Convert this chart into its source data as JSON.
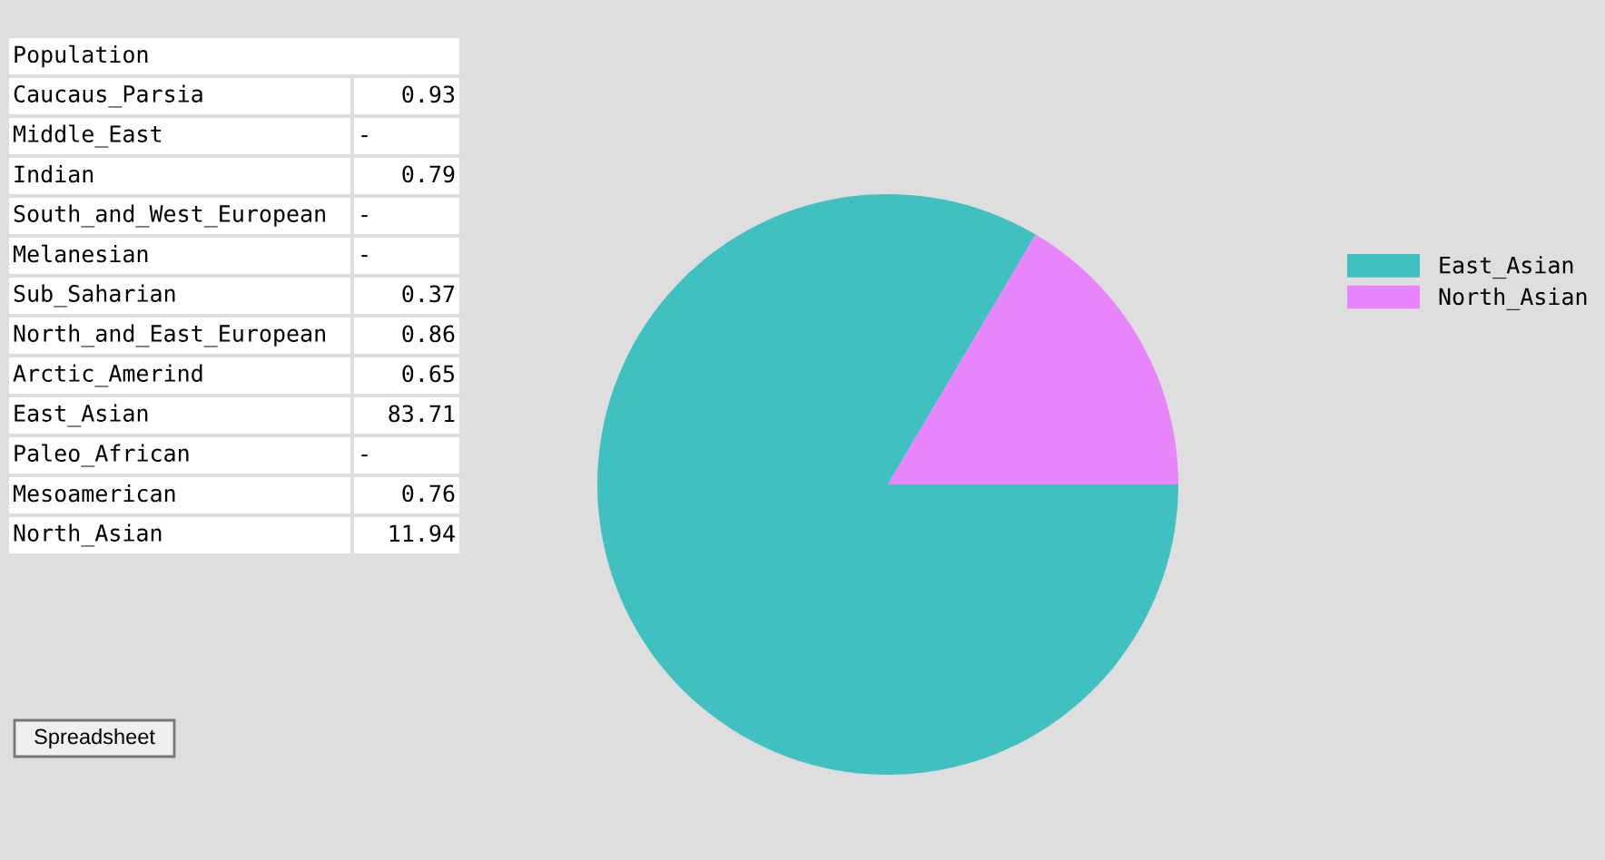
{
  "chart_data": [
    {
      "type": "other",
      "title": "Population",
      "categories": [
        "Caucaus_Parsia",
        "Middle_East",
        "Indian",
        "South_and_West_European",
        "Melanesian",
        "Sub_Saharian",
        "North_and_East_European",
        "Arctic_Amerind",
        "East_Asian",
        "Paleo_African",
        "Mesoamerican",
        "North_Asian"
      ],
      "value_labels": [
        "0.93",
        "-",
        "0.79",
        "-",
        "-",
        "0.37",
        "0.86",
        "0.65",
        "83.71",
        "-",
        "0.76",
        "11.94"
      ],
      "annotations": [
        "Spreadsheet"
      ]
    },
    {
      "type": "pie",
      "categories": [
        "East_Asian",
        "North_Asian"
      ],
      "values": [
        83.5,
        16.5
      ],
      "colors": [
        "#40c0c0",
        "#e884fc"
      ],
      "legend": "right"
    }
  ]
}
